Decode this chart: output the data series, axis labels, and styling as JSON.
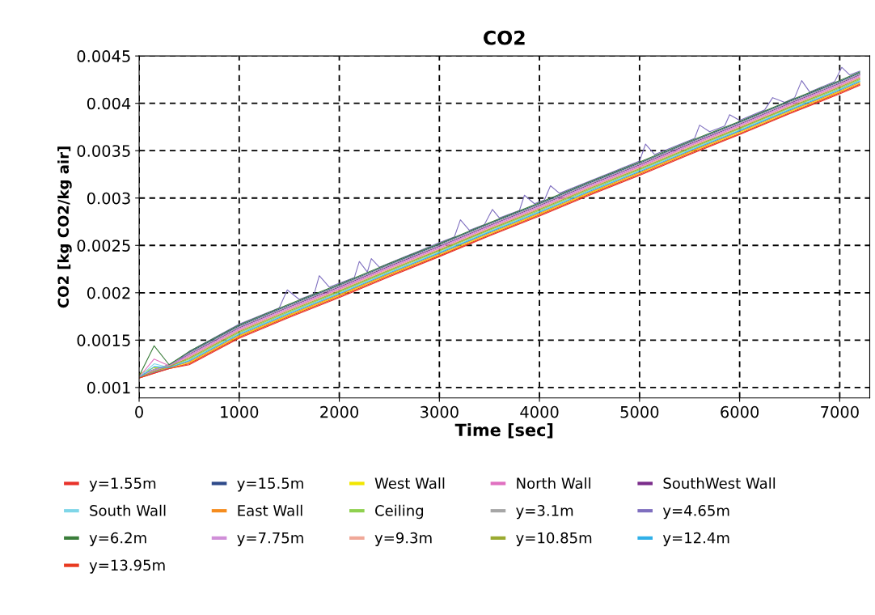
{
  "chart_data": {
    "type": "line",
    "title": "CO2",
    "xlabel": "Time [sec]",
    "ylabel": "CO2 [kg CO2/kg air]",
    "x": [
      0,
      150,
      300,
      500,
      1000,
      1500,
      2000,
      2500,
      3000,
      3500,
      4000,
      4500,
      5000,
      5500,
      6000,
      6500,
      7000,
      7200
    ],
    "xlim": [
      0,
      7300
    ],
    "xticks": [
      0,
      1000,
      2000,
      3000,
      4000,
      5000,
      6000,
      7000
    ],
    "ylim": [
      0.00089,
      0.0045
    ],
    "yticks": [
      0.001,
      0.0015,
      0.002,
      0.0025,
      0.003,
      0.0035,
      0.004,
      0.0045
    ],
    "grid": true,
    "legend": "bottom",
    "line_style": "solid",
    "marker": "none",
    "series": [
      {
        "name": "y=1.55m",
        "color": "#e8322a",
        "values": [
          0.0011,
          0.00115,
          0.0012,
          0.00124,
          0.00152,
          0.00174,
          0.00195,
          0.00217,
          0.00238,
          0.0026,
          0.00281,
          0.00303,
          0.00324,
          0.00346,
          0.00367,
          0.00389,
          0.0041,
          0.00419
        ]
      },
      {
        "name": "y=15.5m",
        "color": "#2e4a8a",
        "values": [
          0.00112,
          0.00119,
          0.00124,
          0.00137,
          0.00165,
          0.00187,
          0.00208,
          0.0023,
          0.00251,
          0.00273,
          0.00294,
          0.00316,
          0.00337,
          0.00359,
          0.0038,
          0.00402,
          0.00423,
          0.00432
        ]
      },
      {
        "name": "West Wall",
        "color": "#f2e600",
        "values": [
          0.00114,
          0.00121,
          0.0012,
          0.00126,
          0.00154,
          0.00176,
          0.00197,
          0.00219,
          0.0024,
          0.00262,
          0.00283,
          0.00305,
          0.00326,
          0.00348,
          0.00369,
          0.00391,
          0.00412,
          0.00421
        ]
      },
      {
        "name": "North Wall",
        "color": "#e070c0",
        "values": [
          0.00111,
          0.0013,
          0.00123,
          0.00133,
          0.00161,
          0.00183,
          0.00204,
          0.00226,
          0.00247,
          0.00269,
          0.0029,
          0.00312,
          0.00333,
          0.00355,
          0.00376,
          0.00398,
          0.00419,
          0.00428
        ]
      },
      {
        "name": "SouthWest Wall",
        "color": "#7b2d8b",
        "values": [
          0.00112,
          0.00118,
          0.00123,
          0.00135,
          0.00163,
          0.00185,
          0.00206,
          0.00228,
          0.00249,
          0.00271,
          0.00292,
          0.00314,
          0.00335,
          0.00357,
          0.00378,
          0.004,
          0.00421,
          0.0043
        ]
      },
      {
        "name": "South Wall",
        "color": "#7fd6e8",
        "values": [
          0.00111,
          0.00125,
          0.00121,
          0.00129,
          0.00157,
          0.00179,
          0.002,
          0.00222,
          0.00243,
          0.00265,
          0.00286,
          0.00308,
          0.00329,
          0.00351,
          0.00372,
          0.00394,
          0.00415,
          0.00424
        ]
      },
      {
        "name": "East Wall",
        "color": "#f58c1e",
        "values": [
          0.0011,
          0.00116,
          0.00121,
          0.00127,
          0.00155,
          0.00177,
          0.00198,
          0.0022,
          0.00241,
          0.00263,
          0.00284,
          0.00306,
          0.00327,
          0.00349,
          0.0037,
          0.00392,
          0.00413,
          0.00422
        ]
      },
      {
        "name": "Ceiling",
        "color": "#8fd14f",
        "values": [
          0.00111,
          0.00117,
          0.00122,
          0.0013,
          0.00158,
          0.0018,
          0.00201,
          0.00223,
          0.00244,
          0.00266,
          0.00287,
          0.00309,
          0.0033,
          0.00352,
          0.00373,
          0.00395,
          0.00416,
          0.00425
        ]
      },
      {
        "name": "y=3.1m",
        "color": "#a6a6a6",
        "values": [
          0.00112,
          0.00119,
          0.00124,
          0.00136,
          0.00164,
          0.00186,
          0.00207,
          0.00229,
          0.0025,
          0.00272,
          0.00293,
          0.00315,
          0.00336,
          0.00358,
          0.00379,
          0.00401,
          0.00422,
          0.00431
        ]
      },
      {
        "name": "y=4.65m",
        "color": "#7f6fbf",
        "x": [
          0,
          150,
          300,
          500,
          1000,
          1400,
          1480,
          1600,
          1750,
          1800,
          1900,
          2150,
          2200,
          2280,
          2320,
          2400,
          3000,
          3150,
          3210,
          3300,
          3450,
          3530,
          3600,
          3800,
          3850,
          3950,
          4050,
          4110,
          4200,
          5000,
          5060,
          5150,
          5550,
          5600,
          5700,
          5850,
          5900,
          6000,
          6250,
          6330,
          6450,
          6550,
          6620,
          6700,
          6950,
          7020,
          7100,
          7200
        ],
        "values": [
          0.00111,
          0.00116,
          0.0012,
          0.00138,
          0.00167,
          0.00184,
          0.00203,
          0.00193,
          0.00199,
          0.00218,
          0.00206,
          0.00216,
          0.00233,
          0.00222,
          0.00236,
          0.00227,
          0.00253,
          0.00259,
          0.00277,
          0.00266,
          0.00272,
          0.00288,
          0.00279,
          0.00287,
          0.00303,
          0.00294,
          0.00298,
          0.00313,
          0.00305,
          0.00339,
          0.00357,
          0.00346,
          0.00363,
          0.00377,
          0.0037,
          0.00376,
          0.00388,
          0.00382,
          0.00393,
          0.00406,
          0.00401,
          0.00406,
          0.00424,
          0.00412,
          0.00423,
          0.00438,
          0.0043,
          0.00434
        ]
      },
      {
        "name": "y=6.2m",
        "color": "#3a7d3a",
        "values": [
          0.00112,
          0.00144,
          0.00124,
          0.00138,
          0.00166,
          0.00188,
          0.00209,
          0.00231,
          0.00252,
          0.00274,
          0.00295,
          0.00317,
          0.00338,
          0.0036,
          0.00381,
          0.00403,
          0.00424,
          0.00433
        ]
      },
      {
        "name": "y=7.75m",
        "color": "#d08fd8",
        "values": [
          0.00112,
          0.00118,
          0.00123,
          0.00134,
          0.00162,
          0.00184,
          0.00205,
          0.00227,
          0.00248,
          0.0027,
          0.00291,
          0.00313,
          0.00334,
          0.00356,
          0.00377,
          0.00399,
          0.0042,
          0.00429
        ]
      },
      {
        "name": "y=9.3m",
        "color": "#f0a898",
        "values": [
          0.00111,
          0.00117,
          0.00122,
          0.00132,
          0.0016,
          0.00182,
          0.00203,
          0.00225,
          0.00246,
          0.00268,
          0.00289,
          0.00311,
          0.00332,
          0.00354,
          0.00375,
          0.00397,
          0.00418,
          0.00427
        ]
      },
      {
        "name": "y=10.85m",
        "color": "#9aaa30",
        "values": [
          0.00111,
          0.00117,
          0.00122,
          0.00131,
          0.00159,
          0.00181,
          0.00202,
          0.00224,
          0.00245,
          0.00267,
          0.00288,
          0.0031,
          0.00331,
          0.00353,
          0.00374,
          0.00396,
          0.00417,
          0.00426
        ]
      },
      {
        "name": "y=12.4m",
        "color": "#30b0e8",
        "values": [
          0.0011,
          0.00122,
          0.00121,
          0.00128,
          0.00156,
          0.00178,
          0.00199,
          0.00221,
          0.00242,
          0.00264,
          0.00285,
          0.00307,
          0.00328,
          0.0035,
          0.00371,
          0.00393,
          0.00414,
          0.00423
        ]
      },
      {
        "name": "y=13.95m",
        "color": "#e83a20",
        "values": [
          0.0011,
          0.00115,
          0.0012,
          0.00125,
          0.00153,
          0.00175,
          0.00196,
          0.00218,
          0.00239,
          0.00261,
          0.00282,
          0.00304,
          0.00325,
          0.00347,
          0.00368,
          0.0039,
          0.00411,
          0.0042
        ]
      }
    ]
  }
}
